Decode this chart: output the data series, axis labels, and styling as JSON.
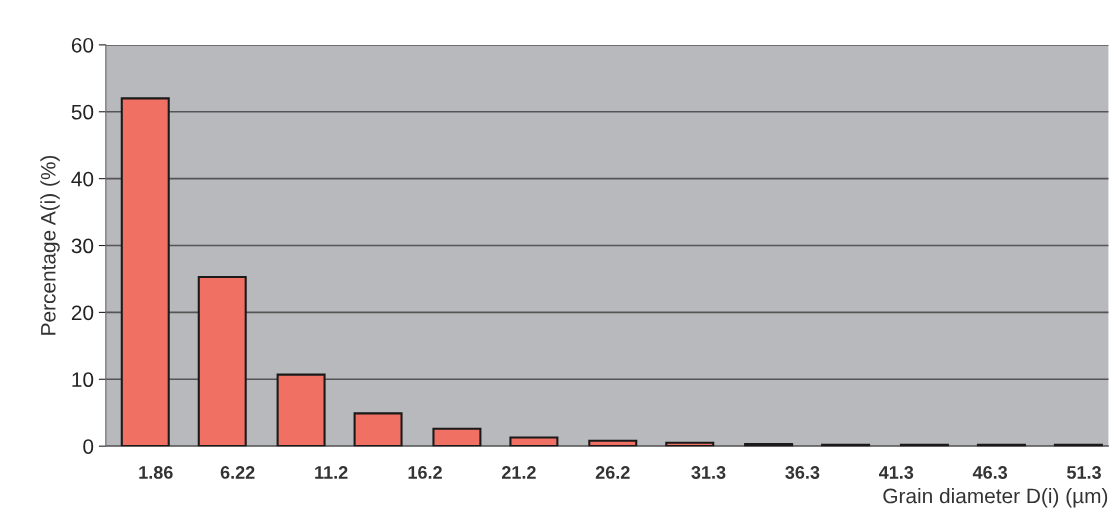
{
  "chart_data": {
    "type": "bar",
    "xlabel": "Grain diameter D(i) (µm)",
    "ylabel": "Percentage A(i) (%)",
    "x": [
      1.3,
      5.4,
      9.6,
      13.7,
      17.9,
      22.0,
      26.2,
      30.3,
      34.5,
      38.6,
      42.8,
      46.9,
      51.0
    ],
    "values": [
      52,
      25.3,
      10.7,
      4.9,
      2.6,
      1.3,
      0.8,
      0.5,
      0.3,
      0.2,
      0.2,
      0.2,
      0.2
    ],
    "color": "#f07063",
    "xlim": [
      -0.8,
      52.6
    ],
    "xticks": [
      1.86,
      6.22,
      11.2,
      16.2,
      21.2,
      26.2,
      31.3,
      36.3,
      41.3,
      46.3,
      51.3
    ],
    "ylim": [
      0,
      60
    ],
    "yticks": [
      0,
      10,
      20,
      30,
      40,
      50,
      60
    ],
    "grid": "y"
  }
}
